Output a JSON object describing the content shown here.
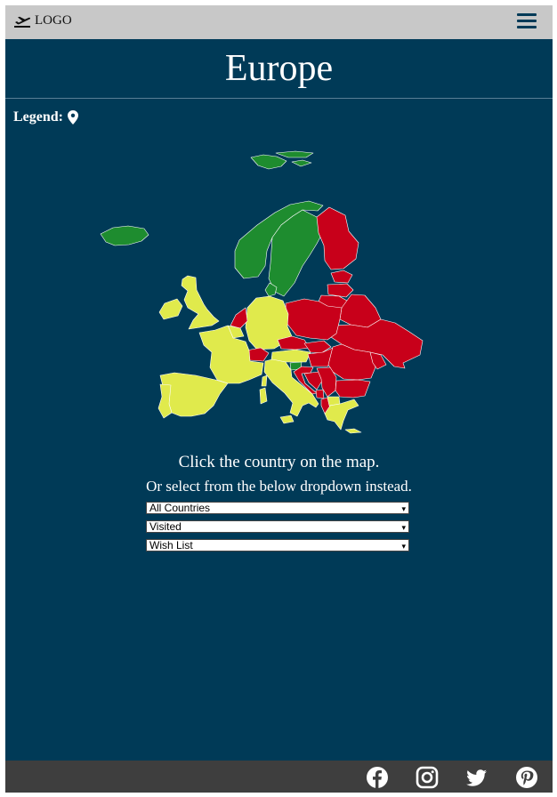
{
  "header": {
    "logo_text": "LOGO",
    "logo_icon": "plane-departure-icon",
    "menu_icon": "hamburger-menu-icon"
  },
  "page": {
    "title": "Europe"
  },
  "legend": {
    "label": "Legend:",
    "icon": "map-marker-icon"
  },
  "map": {
    "colors": {
      "visited": "#1e8c2f",
      "wish_list": "#c8001a",
      "not_visited": "#e0ea4c",
      "border": "#ffffff"
    },
    "countries_visited": [
      "Iceland",
      "Svalbard",
      "Norway",
      "Sweden",
      "Denmark",
      "Slovenia"
    ],
    "countries_wish_list": [
      "Finland",
      "Estonia",
      "Latvia",
      "Lithuania",
      "Belarus",
      "Poland",
      "Ukraine",
      "Czech Republic",
      "Slovakia",
      "Hungary",
      "Romania",
      "Serbia",
      "Bulgaria",
      "Moldova",
      "Netherlands",
      "Bosnia and Herzegovina",
      "Montenegro",
      "Albania",
      "Croatia"
    ]
  },
  "instructions": {
    "line1": "Click the country on the map.",
    "line2": "Or select from the below dropdown instead."
  },
  "dropdowns": [
    {
      "selected": "All Countries"
    },
    {
      "selected": "Visited"
    },
    {
      "selected": "Wish List"
    }
  ],
  "footer": {
    "icons": [
      "facebook-icon",
      "instagram-icon",
      "twitter-icon",
      "pinterest-icon"
    ]
  }
}
